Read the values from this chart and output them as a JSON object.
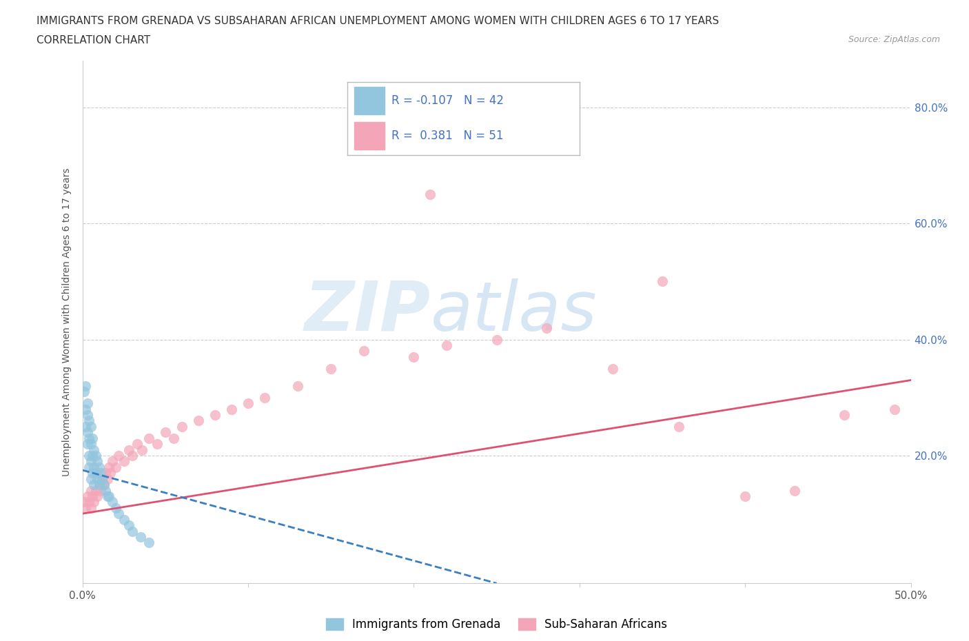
{
  "title_line1": "IMMIGRANTS FROM GRENADA VS SUBSAHARAN AFRICAN UNEMPLOYMENT AMONG WOMEN WITH CHILDREN AGES 6 TO 17 YEARS",
  "title_line2": "CORRELATION CHART",
  "source_text": "Source: ZipAtlas.com",
  "ylabel": "Unemployment Among Women with Children Ages 6 to 17 years",
  "xlim": [
    0.0,
    0.5
  ],
  "ylim": [
    -0.02,
    0.88
  ],
  "xticks": [
    0.0,
    0.1,
    0.2,
    0.3,
    0.4,
    0.5
  ],
  "xticklabels": [
    "0.0%",
    "",
    "",
    "",
    "",
    "50.0%"
  ],
  "yticks": [
    0.0,
    0.2,
    0.4,
    0.6,
    0.8
  ],
  "yticklabels": [
    "",
    "20.0%",
    "40.0%",
    "60.0%",
    "80.0%"
  ],
  "legend_r1": "-0.107",
  "legend_n1": "42",
  "legend_r2": "0.381",
  "legend_n2": "51",
  "color_blue": "#92c5de",
  "color_pink": "#f4a6b8",
  "color_blue_line": "#3a7fbf",
  "color_pink_line": "#e05070",
  "watermark_zip": "ZIP",
  "watermark_atlas": "atlas",
  "blue_scatter_x": [
    0.001,
    0.002,
    0.002,
    0.002,
    0.003,
    0.003,
    0.003,
    0.003,
    0.004,
    0.004,
    0.004,
    0.004,
    0.005,
    0.005,
    0.005,
    0.005,
    0.006,
    0.006,
    0.006,
    0.007,
    0.007,
    0.007,
    0.008,
    0.008,
    0.009,
    0.009,
    0.01,
    0.01,
    0.011,
    0.012,
    0.013,
    0.014,
    0.015,
    0.016,
    0.018,
    0.02,
    0.022,
    0.025,
    0.028,
    0.03,
    0.035,
    0.04
  ],
  "blue_scatter_y": [
    0.31,
    0.32,
    0.28,
    0.25,
    0.29,
    0.27,
    0.24,
    0.22,
    0.26,
    0.23,
    0.2,
    0.18,
    0.25,
    0.22,
    0.19,
    0.16,
    0.23,
    0.2,
    0.17,
    0.21,
    0.18,
    0.15,
    0.2,
    0.17,
    0.19,
    0.16,
    0.18,
    0.15,
    0.17,
    0.16,
    0.15,
    0.14,
    0.13,
    0.13,
    0.12,
    0.11,
    0.1,
    0.09,
    0.08,
    0.07,
    0.06,
    0.05
  ],
  "pink_scatter_x": [
    0.001,
    0.002,
    0.003,
    0.004,
    0.005,
    0.005,
    0.006,
    0.007,
    0.008,
    0.009,
    0.01,
    0.011,
    0.012,
    0.013,
    0.014,
    0.015,
    0.016,
    0.017,
    0.018,
    0.02,
    0.022,
    0.025,
    0.028,
    0.03,
    0.033,
    0.036,
    0.04,
    0.045,
    0.05,
    0.055,
    0.06,
    0.07,
    0.08,
    0.09,
    0.1,
    0.11,
    0.13,
    0.15,
    0.17,
    0.2,
    0.22,
    0.25,
    0.28,
    0.32,
    0.36,
    0.4,
    0.43,
    0.46,
    0.49,
    0.21,
    0.35
  ],
  "pink_scatter_y": [
    0.12,
    0.11,
    0.13,
    0.12,
    0.14,
    0.11,
    0.13,
    0.12,
    0.14,
    0.13,
    0.15,
    0.14,
    0.16,
    0.15,
    0.17,
    0.16,
    0.18,
    0.17,
    0.19,
    0.18,
    0.2,
    0.19,
    0.21,
    0.2,
    0.22,
    0.21,
    0.23,
    0.22,
    0.24,
    0.23,
    0.25,
    0.26,
    0.27,
    0.28,
    0.29,
    0.3,
    0.32,
    0.35,
    0.38,
    0.37,
    0.39,
    0.4,
    0.42,
    0.35,
    0.25,
    0.13,
    0.14,
    0.27,
    0.28,
    0.65,
    0.5
  ],
  "pink_line_x0": 0.0,
  "pink_line_y0": 0.1,
  "pink_line_x1": 0.5,
  "pink_line_y1": 0.33,
  "blue_line_x0": 0.0,
  "blue_line_y0": 0.175,
  "blue_line_x1": 0.25,
  "blue_line_y1": -0.02
}
